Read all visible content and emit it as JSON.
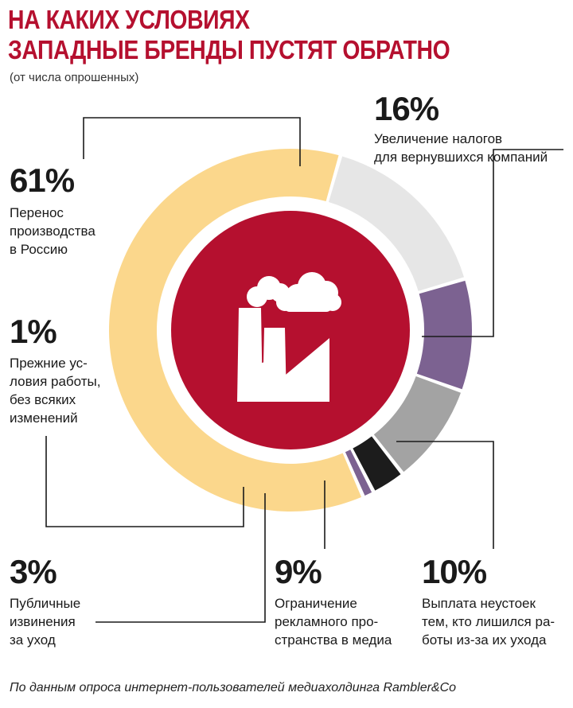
{
  "title_lines": [
    "НА КАКИХ УСЛОВИЯХ",
    "ЗАПАДНЫЕ БРЕНДЫ ПУСТЯТ ОБРАТНО"
  ],
  "subtitle": "(от числа опрошенных)",
  "source": "По данным опроса интернет-пользователей медиахолдинга Rambler&Co",
  "chart_data": {
    "type": "donut",
    "unit": "%",
    "center_icon": "factory-icon",
    "segments": [
      {
        "value": 16,
        "pct": "16%",
        "label": "Увеличение налогов\nдля вернувшихся компаний",
        "color": "#e6e6e6"
      },
      {
        "value": 10,
        "pct": "10%",
        "label": "Выплата неустоек\nтем, кто лишился ра-\nботы из-за их ухода",
        "color": "#7c6291"
      },
      {
        "value": 9,
        "pct": "9%",
        "label": "Ограничение\nрекламного про-\nстранства в медиа",
        "color": "#a3a3a3"
      },
      {
        "value": 3,
        "pct": "3%",
        "label": "Публичные\nизвинения\nза уход",
        "color": "#1c1c1c"
      },
      {
        "value": 1,
        "pct": "1%",
        "label": "Прежние ус-\nловия работы,\nбез всяких\nизменений",
        "color": "#7c6291"
      },
      {
        "value": 61,
        "pct": "61%",
        "label": "Перенос\nпроизводства\nв Россию",
        "color": "#fbd78c"
      }
    ],
    "colors": {
      "accent": "#b5102f",
      "center": "#b5102f"
    }
  }
}
